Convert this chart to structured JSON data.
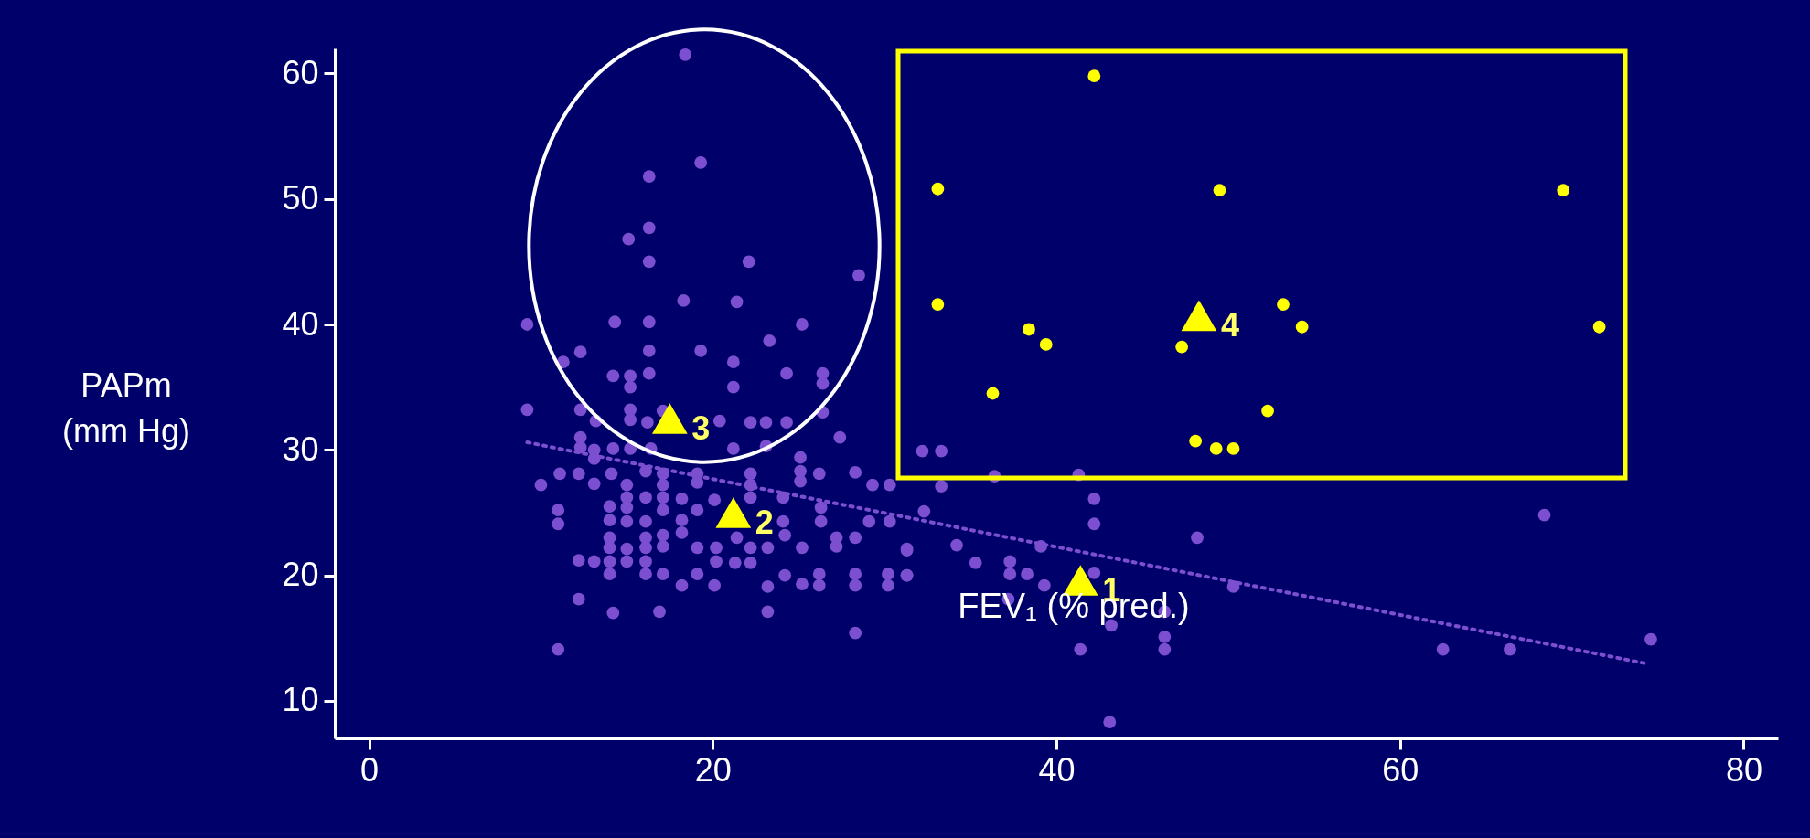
{
  "chart_data": {
    "type": "scatter",
    "xlabel": "FEV₁ (% pred.)",
    "ylabel": "PAPm\n(mm Hg)",
    "xlim": [
      -2,
      82
    ],
    "ylim": [
      7,
      62
    ],
    "xticks": [
      0,
      20,
      40,
      60,
      80
    ],
    "yticks": [
      10,
      20,
      30,
      40,
      50,
      60
    ],
    "grid": false,
    "series": [
      {
        "type": "line",
        "line_style": "dotted",
        "marker": "none",
        "color": "#7b4fcf",
        "x": [
          9.2,
          74.2
        ],
        "values": [
          30.6,
          13.0
        ]
      },
      {
        "marker": "circle",
        "color": "#7b4fcf",
        "x": [
          18.4,
          19.3,
          16.3,
          16.3,
          15.1,
          16.3,
          22.1,
          28.5,
          18.3,
          21.4,
          9.2,
          14.3,
          16.3,
          25.2,
          23.3,
          12.3,
          16.3,
          19.3,
          21.2,
          11.3,
          14.2,
          15.2,
          16.3,
          24.3,
          26.4,
          15.2,
          21.2,
          26.4,
          9.2,
          12.3,
          15.2,
          17.1,
          13.2,
          15.2,
          16.2,
          20.4,
          22.2,
          23.1,
          24.3,
          26.4,
          27.4,
          12.3,
          12.3,
          13.1,
          14.2,
          15.2,
          16.4,
          21.2,
          23.1,
          25.1,
          13.1,
          11.1,
          12.2,
          14.1,
          16.1,
          17.1,
          19.1,
          22.2,
          25.1,
          26.2,
          28.3,
          10.0,
          13.1,
          15.0,
          17.1,
          19.1,
          22.2,
          25.1,
          29.3,
          30.3,
          15.0,
          16.1,
          17.1,
          18.2,
          20.1,
          22.2,
          24.1,
          11.0,
          14.0,
          15.0,
          17.1,
          19.1,
          26.3,
          11.0,
          14.0,
          15.0,
          16.1,
          18.2,
          24.1,
          26.3,
          29.1,
          30.3,
          14.0,
          16.1,
          17.1,
          18.2,
          21.4,
          24.2,
          27.2,
          28.3,
          14.0,
          15.0,
          16.1,
          17.1,
          19.1,
          20.2,
          22.2,
          23.2,
          25.2,
          27.2,
          31.3,
          12.2,
          13.1,
          14.0,
          15.0,
          16.1,
          20.2,
          21.3,
          22.2,
          14.0,
          16.1,
          17.1,
          19.1,
          24.2,
          26.2,
          28.3,
          30.2,
          31.3,
          18.2,
          20.1,
          23.2,
          25.2,
          26.2,
          28.3,
          30.2,
          12.2,
          14.2,
          16.9,
          23.2,
          28.3,
          11.0,
          32.2,
          33.3,
          36.4,
          41.3,
          33.3,
          42.2,
          32.3,
          42.2,
          48.2,
          31.3,
          34.2,
          39.1,
          35.3,
          37.3,
          37.3,
          31.3,
          38.3,
          39.3,
          42.2,
          50.3,
          37.2,
          46.3,
          43.2,
          46.3,
          46.3,
          41.4,
          43.1,
          68.4,
          62.5,
          66.4,
          74.6
        ],
        "values": [
          61.5,
          52.9,
          51.8,
          47.7,
          46.8,
          45.0,
          45.0,
          43.9,
          41.9,
          41.8,
          40.0,
          40.2,
          40.2,
          40.0,
          38.7,
          37.8,
          37.9,
          37.9,
          37.0,
          37.0,
          35.9,
          35.9,
          36.1,
          36.1,
          36.1,
          35.0,
          35.0,
          35.3,
          33.2,
          33.2,
          33.2,
          33.1,
          32.3,
          32.4,
          32.2,
          32.3,
          32.2,
          32.2,
          32.2,
          33.0,
          31.0,
          31.0,
          30.2,
          30.0,
          30.1,
          30.1,
          30.1,
          30.1,
          30.3,
          29.4,
          29.3,
          28.1,
          28.1,
          28.1,
          28.3,
          28.1,
          28.1,
          28.1,
          28.3,
          28.1,
          28.2,
          27.2,
          27.3,
          27.2,
          27.2,
          27.4,
          27.2,
          27.5,
          27.2,
          27.2,
          26.2,
          26.2,
          26.2,
          26.1,
          26.0,
          26.2,
          26.2,
          25.2,
          25.5,
          25.4,
          25.2,
          25.2,
          25.4,
          24.1,
          24.4,
          24.3,
          24.3,
          24.4,
          24.3,
          24.3,
          24.3,
          24.3,
          23.0,
          23.0,
          23.2,
          23.4,
          23.0,
          23.2,
          23.0,
          23.0,
          22.2,
          22.1,
          22.2,
          22.3,
          22.2,
          22.2,
          22.2,
          22.2,
          22.2,
          22.3,
          22.1,
          21.2,
          21.1,
          21.1,
          21.1,
          21.1,
          21.1,
          21.0,
          21.0,
          20.1,
          20.1,
          20.1,
          20.1,
          20.0,
          20.1,
          20.1,
          20.1,
          20.0,
          19.2,
          19.2,
          19.1,
          19.3,
          19.2,
          19.2,
          19.2,
          18.1,
          17.0,
          17.1,
          17.1,
          15.4,
          14.1,
          29.9,
          29.9,
          27.9,
          28.0,
          27.1,
          26.1,
          25.1,
          24.1,
          23.0,
          22.0,
          22.4,
          22.3,
          21.0,
          21.1,
          20.1,
          20.0,
          20.1,
          19.2,
          20.2,
          19.1,
          18.1,
          17.1,
          16.0,
          15.1,
          14.1,
          14.1,
          8.3,
          24.8,
          14.1,
          14.1,
          14.9
        ]
      },
      {
        "marker": "circle",
        "color": "#ffff00",
        "x": [
          42.2,
          33.1,
          49.5,
          69.5,
          33.1,
          53.2,
          38.4,
          54.3,
          71.6,
          39.4,
          47.3,
          36.3,
          52.3,
          48.1,
          49.3,
          50.3
        ],
        "values": [
          59.8,
          50.8,
          50.7,
          50.7,
          41.6,
          41.6,
          39.6,
          39.8,
          39.8,
          38.4,
          38.2,
          34.5,
          33.1,
          30.7,
          30.1,
          30.1
        ]
      },
      {
        "marker": "triangle",
        "color": "#ffff00",
        "x": [
          41.4,
          21.2,
          17.5,
          48.3
        ],
        "values": [
          19.6,
          25.0,
          32.5,
          40.7
        ]
      }
    ],
    "annotations": [
      {
        "text": "1",
        "x": 41.4,
        "y": 19.6
      },
      {
        "text": "2",
        "x": 21.2,
        "y": 25.0
      },
      {
        "text": "3",
        "x": 17.5,
        "y": 32.5
      },
      {
        "text": "4",
        "x": 48.3,
        "y": 40.7
      }
    ]
  }
}
